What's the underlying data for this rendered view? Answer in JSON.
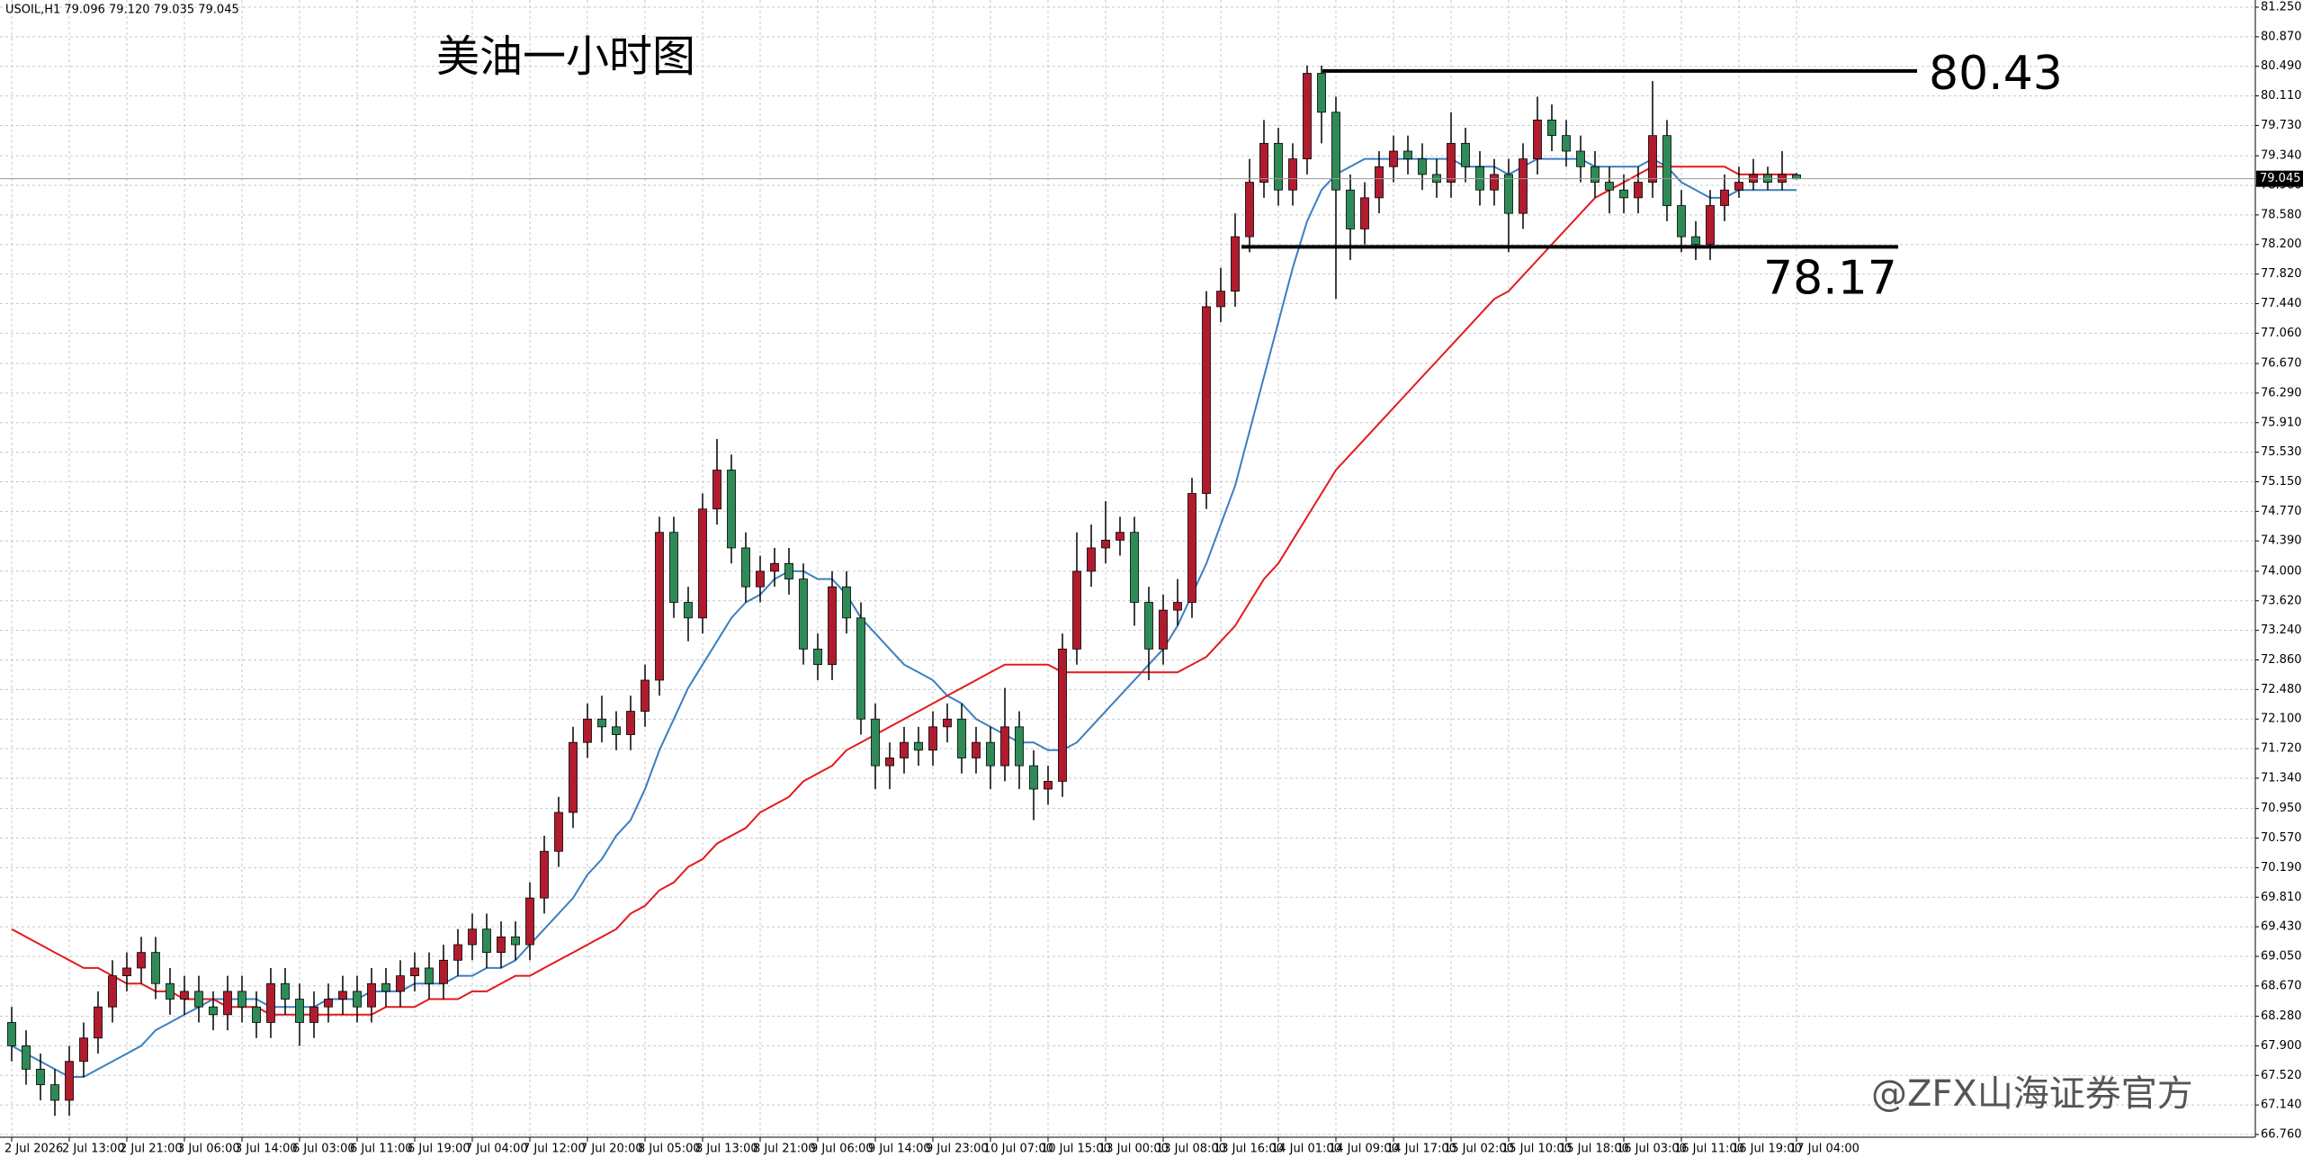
{
  "chart_data": {
    "type": "candlestick",
    "header": "USOIL,H1  79.096 79.120 79.035 79.045",
    "title": "美油一小时图",
    "watermark": "@ZFX山海证券官方",
    "x": [
      "2 Jul 2026",
      null,
      null,
      null,
      "2 Jul 13:00",
      null,
      null,
      null,
      "2 Jul 21:00",
      null,
      null,
      null,
      "3 Jul 06:00",
      null,
      null,
      null,
      "3 Jul 14:00",
      null,
      null,
      null,
      "6 Jul 03:00",
      null,
      null,
      null,
      "6 Jul 11:00",
      null,
      null,
      null,
      "6 Jul 19:00",
      null,
      null,
      null,
      "7 Jul 04:00",
      null,
      null,
      null,
      "7 Jul 12:00",
      null,
      null,
      null,
      "7 Jul 20:00",
      null,
      null,
      null,
      "8 Jul 05:00",
      null,
      null,
      null,
      "8 Jul 13:00",
      null,
      null,
      null,
      "8 Jul 21:00",
      null,
      null,
      null,
      "9 Jul 06:00",
      null,
      null,
      null,
      "9 Jul 14:00",
      null,
      null,
      null,
      "9 Jul 23:00",
      null,
      null,
      null,
      "10 Jul 07:00",
      null,
      null,
      null,
      "10 Jul 15:00",
      null,
      null,
      null,
      "13 Jul 00:00",
      null,
      null,
      null,
      "13 Jul 08:00",
      null,
      null,
      null,
      "13 Jul 16:00",
      null,
      null,
      null,
      "14 Jul 01:00",
      null,
      null,
      null,
      "14 Jul 09:00",
      null,
      null,
      null,
      "14 Jul 17:00",
      null,
      null,
      null,
      "15 Jul 02:00",
      null,
      null,
      null,
      "15 Jul 10:00",
      null,
      null,
      null,
      "15 Jul 18:00",
      null,
      null,
      null,
      "16 Jul 03:00",
      null,
      null,
      null,
      "16 Jul 11:00",
      null,
      null,
      null,
      "16 Jul 19:00",
      null,
      null,
      null,
      "17 Jul 04:00"
    ],
    "open": [
      68.2,
      67.9,
      67.6,
      67.4,
      67.2,
      67.7,
      68.0,
      68.4,
      68.8,
      68.9,
      69.1,
      68.7,
      68.5,
      68.6,
      68.4,
      68.3,
      68.6,
      68.4,
      68.2,
      68.7,
      68.5,
      68.2,
      68.4,
      68.5,
      68.6,
      68.4,
      68.7,
      68.6,
      68.8,
      68.9,
      68.7,
      69.0,
      69.2,
      69.4,
      69.1,
      69.3,
      69.2,
      69.8,
      70.4,
      70.9,
      71.8,
      72.1,
      72.0,
      71.9,
      72.2,
      72.6,
      74.5,
      73.6,
      73.4,
      74.8,
      75.3,
      74.3,
      73.8,
      74.0,
      74.1,
      73.9,
      73.0,
      72.8,
      73.8,
      73.4,
      72.1,
      71.5,
      71.6,
      71.8,
      71.7,
      72.0,
      72.1,
      71.6,
      71.8,
      71.5,
      72.0,
      71.5,
      71.2,
      71.3,
      73.0,
      74.0,
      74.3,
      74.4,
      74.5,
      73.6,
      73.0,
      73.5,
      73.6,
      75.0,
      77.4,
      77.6,
      78.3,
      79.0,
      79.5,
      78.9,
      79.3,
      80.4,
      79.9,
      78.9,
      78.4,
      78.8,
      79.2,
      79.4,
      79.3,
      79.1,
      79.0,
      79.5,
      79.2,
      78.9,
      79.1,
      78.6,
      79.3,
      79.8,
      79.6,
      79.4,
      79.2,
      79.0,
      78.9,
      78.8,
      79.0,
      79.6,
      78.7,
      78.3,
      78.2,
      78.7,
      78.9,
      79.0,
      79.1,
      79.0,
      79.096
    ],
    "high": [
      68.4,
      68.1,
      67.8,
      67.6,
      67.9,
      68.2,
      68.6,
      69.0,
      69.1,
      69.3,
      69.3,
      68.9,
      68.8,
      68.8,
      68.6,
      68.8,
      68.8,
      68.6,
      68.9,
      68.9,
      68.7,
      68.6,
      68.7,
      68.8,
      68.8,
      68.9,
      68.9,
      69.0,
      69.1,
      69.1,
      69.2,
      69.4,
      69.6,
      69.6,
      69.5,
      69.5,
      70.0,
      70.6,
      71.1,
      72.0,
      72.3,
      72.4,
      72.2,
      72.4,
      72.8,
      74.7,
      74.7,
      73.8,
      75.0,
      75.7,
      75.5,
      74.5,
      74.2,
      74.3,
      74.3,
      74.1,
      73.2,
      74.0,
      74.0,
      73.6,
      72.3,
      71.8,
      72.0,
      72.0,
      72.2,
      72.3,
      72.3,
      72.0,
      72.0,
      72.5,
      72.2,
      71.7,
      71.5,
      73.2,
      74.5,
      74.6,
      74.9,
      74.7,
      74.7,
      73.8,
      73.7,
      73.9,
      75.2,
      77.6,
      77.9,
      78.6,
      79.3,
      79.8,
      79.7,
      79.5,
      80.5,
      80.5,
      80.1,
      79.1,
      79.0,
      79.4,
      79.6,
      79.6,
      79.5,
      79.3,
      79.9,
      79.7,
      79.4,
      79.3,
      79.3,
      79.5,
      80.1,
      80.0,
      79.8,
      79.6,
      79.4,
      79.2,
      79.1,
      79.2,
      80.3,
      79.8,
      78.9,
      78.5,
      78.9,
      79.1,
      79.2,
      79.3,
      79.2,
      79.4,
      79.12
    ],
    "low": [
      67.7,
      67.4,
      67.2,
      67.0,
      67.0,
      67.5,
      67.8,
      68.2,
      68.6,
      68.7,
      68.5,
      68.3,
      68.3,
      68.2,
      68.1,
      68.1,
      68.2,
      68.0,
      68.0,
      68.3,
      67.9,
      68.0,
      68.2,
      68.3,
      68.2,
      68.2,
      68.4,
      68.4,
      68.6,
      68.5,
      68.5,
      68.8,
      69.0,
      68.9,
      68.9,
      69.0,
      69.0,
      69.6,
      70.2,
      70.7,
      71.6,
      71.8,
      71.7,
      71.7,
      72.0,
      72.4,
      73.4,
      73.1,
      73.2,
      74.6,
      74.1,
      73.6,
      73.6,
      73.8,
      73.7,
      72.8,
      72.6,
      72.6,
      73.2,
      71.9,
      71.2,
      71.2,
      71.4,
      71.5,
      71.5,
      71.8,
      71.4,
      71.4,
      71.2,
      71.3,
      71.2,
      70.8,
      71.0,
      71.1,
      72.8,
      73.8,
      74.1,
      74.2,
      73.3,
      72.6,
      72.8,
      73.3,
      73.4,
      74.8,
      77.2,
      77.4,
      78.1,
      78.8,
      78.7,
      78.7,
      79.1,
      79.5,
      77.5,
      78.0,
      78.2,
      78.6,
      79.0,
      79.1,
      78.9,
      78.8,
      78.8,
      79.0,
      78.7,
      78.7,
      78.1,
      78.4,
      79.1,
      79.4,
      79.2,
      79.0,
      78.8,
      78.6,
      78.6,
      78.6,
      78.8,
      78.5,
      78.1,
      78.0,
      78.0,
      78.5,
      78.8,
      78.9,
      78.9,
      78.9,
      79.035
    ],
    "close": [
      67.9,
      67.6,
      67.4,
      67.2,
      67.7,
      68.0,
      68.4,
      68.8,
      68.9,
      69.1,
      68.7,
      68.5,
      68.6,
      68.4,
      68.3,
      68.6,
      68.4,
      68.2,
      68.7,
      68.5,
      68.2,
      68.4,
      68.5,
      68.6,
      68.4,
      68.7,
      68.6,
      68.8,
      68.9,
      68.7,
      69.0,
      69.2,
      69.4,
      69.1,
      69.3,
      69.2,
      69.8,
      70.4,
      70.9,
      71.8,
      72.1,
      72.0,
      71.9,
      72.2,
      72.6,
      74.5,
      73.6,
      73.4,
      74.8,
      75.3,
      74.3,
      73.8,
      74.0,
      74.1,
      73.9,
      73.0,
      72.8,
      73.8,
      73.4,
      72.1,
      71.5,
      71.6,
      71.8,
      71.7,
      72.0,
      72.1,
      71.6,
      71.8,
      71.5,
      72.0,
      71.5,
      71.2,
      71.3,
      73.0,
      74.0,
      74.3,
      74.4,
      74.5,
      73.6,
      73.0,
      73.5,
      73.6,
      75.0,
      77.4,
      77.6,
      78.3,
      79.0,
      79.5,
      78.9,
      79.3,
      80.4,
      79.9,
      78.9,
      78.4,
      78.8,
      79.2,
      79.4,
      79.3,
      79.1,
      79.0,
      79.5,
      79.2,
      78.9,
      79.1,
      78.6,
      79.3,
      79.8,
      79.6,
      79.4,
      79.2,
      79.0,
      78.9,
      78.8,
      79.0,
      79.6,
      78.7,
      78.3,
      78.2,
      78.7,
      78.9,
      79.0,
      79.1,
      79.0,
      79.1,
      79.045
    ],
    "up_color": "#b01c2e",
    "down_color": "#2e8b57",
    "series": [
      {
        "color": "#3a7fc0",
        "values": [
          67.9,
          67.8,
          67.7,
          67.6,
          67.5,
          67.5,
          67.6,
          67.7,
          67.8,
          67.9,
          68.1,
          68.2,
          68.3,
          68.4,
          68.5,
          68.5,
          68.5,
          68.5,
          68.4,
          68.4,
          68.4,
          68.4,
          68.5,
          68.5,
          68.5,
          68.6,
          68.6,
          68.6,
          68.7,
          68.7,
          68.7,
          68.8,
          68.8,
          68.9,
          68.9,
          69.0,
          69.2,
          69.4,
          69.6,
          69.8,
          70.1,
          70.3,
          70.6,
          70.8,
          71.2,
          71.7,
          72.1,
          72.5,
          72.8,
          73.1,
          73.4,
          73.6,
          73.7,
          73.9,
          74.0,
          74.0,
          73.9,
          73.9,
          73.7,
          73.4,
          73.2,
          73.0,
          72.8,
          72.7,
          72.6,
          72.4,
          72.3,
          72.1,
          72.0,
          71.9,
          71.8,
          71.8,
          71.7,
          71.7,
          71.8,
          72.0,
          72.2,
          72.4,
          72.6,
          72.8,
          73.0,
          73.3,
          73.7,
          74.1,
          74.6,
          75.1,
          75.8,
          76.5,
          77.2,
          77.9,
          78.5,
          78.9,
          79.1,
          79.2,
          79.3,
          79.3,
          79.3,
          79.3,
          79.3,
          79.3,
          79.3,
          79.2,
          79.2,
          79.2,
          79.1,
          79.2,
          79.3,
          79.3,
          79.3,
          79.3,
          79.2,
          79.2,
          79.2,
          79.2,
          79.3,
          79.2,
          79.0,
          78.9,
          78.8,
          78.8,
          78.9,
          78.9,
          78.9,
          78.9,
          78.9
        ]
      },
      {
        "color": "#e31a1c",
        "values": [
          69.4,
          69.3,
          69.2,
          69.1,
          69.0,
          68.9,
          68.9,
          68.8,
          68.7,
          68.7,
          68.6,
          68.6,
          68.5,
          68.5,
          68.5,
          68.4,
          68.4,
          68.4,
          68.3,
          68.3,
          68.3,
          68.3,
          68.3,
          68.3,
          68.3,
          68.3,
          68.4,
          68.4,
          68.4,
          68.5,
          68.5,
          68.5,
          68.6,
          68.6,
          68.7,
          68.8,
          68.8,
          68.9,
          69.0,
          69.1,
          69.2,
          69.3,
          69.4,
          69.6,
          69.7,
          69.9,
          70.0,
          70.2,
          70.3,
          70.5,
          70.6,
          70.7,
          70.9,
          71.0,
          71.1,
          71.3,
          71.4,
          71.5,
          71.7,
          71.8,
          71.9,
          72.0,
          72.1,
          72.2,
          72.3,
          72.4,
          72.5,
          72.6,
          72.7,
          72.8,
          72.8,
          72.8,
          72.8,
          72.7,
          72.7,
          72.7,
          72.7,
          72.7,
          72.7,
          72.7,
          72.7,
          72.7,
          72.8,
          72.9,
          73.1,
          73.3,
          73.6,
          73.9,
          74.1,
          74.4,
          74.7,
          75.0,
          75.3,
          75.5,
          75.7,
          75.9,
          76.1,
          76.3,
          76.5,
          76.7,
          76.9,
          77.1,
          77.3,
          77.5,
          77.6,
          77.8,
          78.0,
          78.2,
          78.4,
          78.6,
          78.8,
          78.9,
          79.0,
          79.1,
          79.2,
          79.2,
          79.2,
          79.2,
          79.2,
          79.2,
          79.1,
          79.1,
          79.1,
          79.1,
          79.1
        ]
      }
    ],
    "levels": [
      80.43,
      78.17
    ],
    "last_price": 79.045,
    "ylim": [
      66.76,
      81.25
    ],
    "yticks": [
      {
        "value": 66.76,
        "label": "66.760"
      },
      {
        "value": 67.14,
        "label": "67.140"
      },
      {
        "value": 67.52,
        "label": "67.520"
      },
      {
        "value": 67.9,
        "label": "67.900"
      },
      {
        "value": 68.28,
        "label": "68.280"
      },
      {
        "value": 68.67,
        "label": "68.670"
      },
      {
        "value": 69.05,
        "label": "69.050"
      },
      {
        "value": 69.43,
        "label": "69.430"
      },
      {
        "value": 69.81,
        "label": "69.810"
      },
      {
        "value": 70.19,
        "label": "70.190"
      },
      {
        "value": 70.57,
        "label": "70.570"
      },
      {
        "value": 70.95,
        "label": "70.950"
      },
      {
        "value": 71.34,
        "label": "71.340"
      },
      {
        "value": 71.72,
        "label": "71.720"
      },
      {
        "value": 72.1,
        "label": "72.100"
      },
      {
        "value": 72.48,
        "label": "72.480"
      },
      {
        "value": 72.86,
        "label": "72.860"
      },
      {
        "value": 73.24,
        "label": "73.240"
      },
      {
        "value": 73.62,
        "label": "73.620"
      },
      {
        "value": 74,
        "label": "74.000"
      },
      {
        "value": 74.39,
        "label": "74.390"
      },
      {
        "value": 74.77,
        "label": "74.770"
      },
      {
        "value": 75.15,
        "label": "75.150"
      },
      {
        "value": 75.53,
        "label": "75.530"
      },
      {
        "value": 75.91,
        "label": "75.910"
      },
      {
        "value": 76.29,
        "label": "76.290"
      },
      {
        "value": 76.67,
        "label": "76.670"
      },
      {
        "value": 77.06,
        "label": "77.060"
      },
      {
        "value": 77.44,
        "label": "77.440"
      },
      {
        "value": 77.82,
        "label": "77.820"
      },
      {
        "value": 78.2,
        "label": "78.200"
      },
      {
        "value": 78.58,
        "label": "78.580"
      },
      {
        "value": 78.96,
        "label": "78.960"
      },
      {
        "value": 79.34,
        "label": "79.340"
      },
      {
        "value": 79.73,
        "label": "79.730"
      },
      {
        "value": 80.11,
        "label": "80.110"
      },
      {
        "value": 80.49,
        "label": "80.490"
      },
      {
        "value": 80.87,
        "label": "80.870"
      },
      {
        "value": 81.25,
        "label": "81.250"
      }
    ],
    "grid": true
  }
}
